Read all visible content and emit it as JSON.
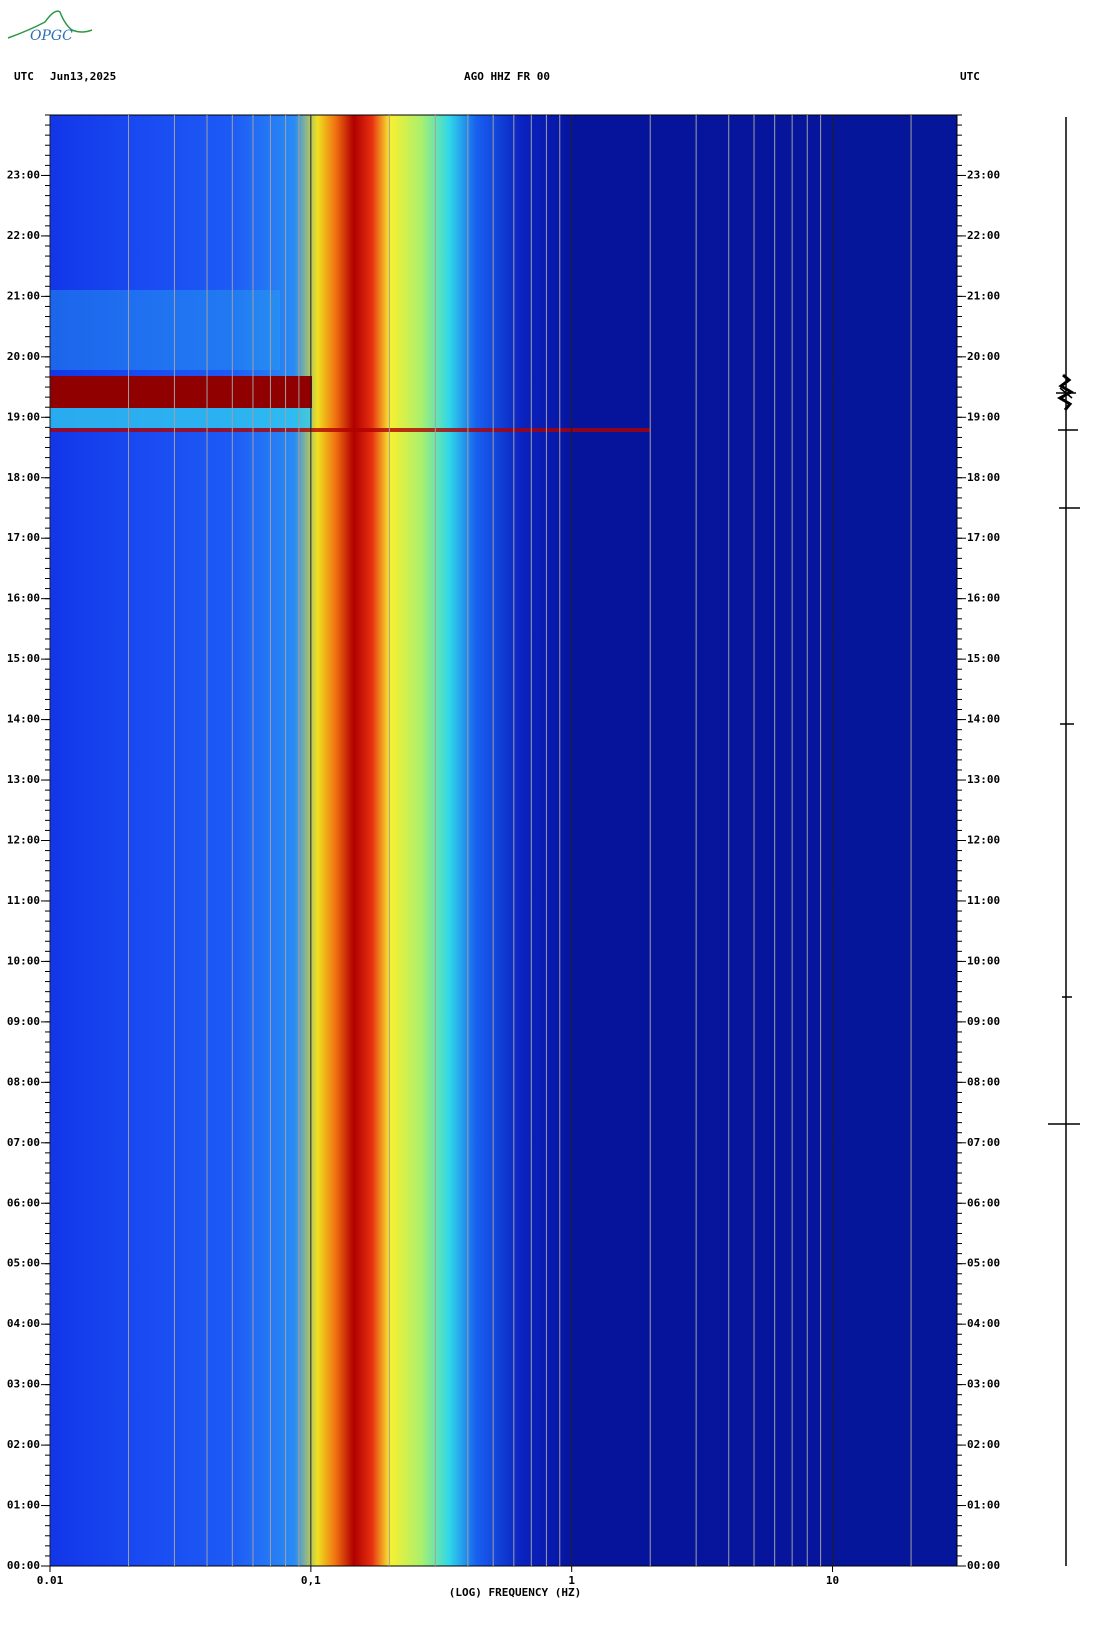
{
  "logo": "OPGC",
  "chart_data": {
    "type": "spectrogram",
    "title": "AGO HHZ FR 00",
    "date": "Jun13,2025",
    "time_zone_label": "UTC",
    "xlabel": "(LOG) FREQUENCY (HZ)",
    "xscale": "log",
    "xlim": [
      0.01,
      30
    ],
    "xticks": [
      0.01,
      {
        "value": 0.1,
        "label": "0,1"
      },
      1,
      10
    ],
    "ylim": [
      0,
      24
    ],
    "yticks": [
      {
        "value": 0,
        "label": "00:00"
      },
      {
        "value": 1,
        "label": "01:00"
      },
      {
        "value": 2,
        "label": "02:00"
      },
      {
        "value": 3,
        "label": "03:00"
      },
      {
        "value": 4,
        "label": "04:00"
      },
      {
        "value": 5,
        "label": "05:00"
      },
      {
        "value": 6,
        "label": "06:00"
      },
      {
        "value": 7,
        "label": "07:00"
      },
      {
        "value": 8,
        "label": "08:00"
      },
      {
        "value": 9,
        "label": "09:00"
      },
      {
        "value": 10,
        "label": "10:00"
      },
      {
        "value": 11,
        "label": "11:00"
      },
      {
        "value": 12,
        "label": "12:00"
      },
      {
        "value": 13,
        "label": "13:00"
      },
      {
        "value": 14,
        "label": "14:00"
      },
      {
        "value": 15,
        "label": "15:00"
      },
      {
        "value": 16,
        "label": "16:00"
      },
      {
        "value": 17,
        "label": "17:00"
      },
      {
        "value": 18,
        "label": "18:00"
      },
      {
        "value": 19,
        "label": "19:00"
      },
      {
        "value": 20,
        "label": "20:00"
      },
      {
        "value": 21,
        "label": "21:00"
      },
      {
        "value": 22,
        "label": "22:00"
      },
      {
        "value": 23,
        "label": "23:00"
      }
    ],
    "grid": true
  }
}
